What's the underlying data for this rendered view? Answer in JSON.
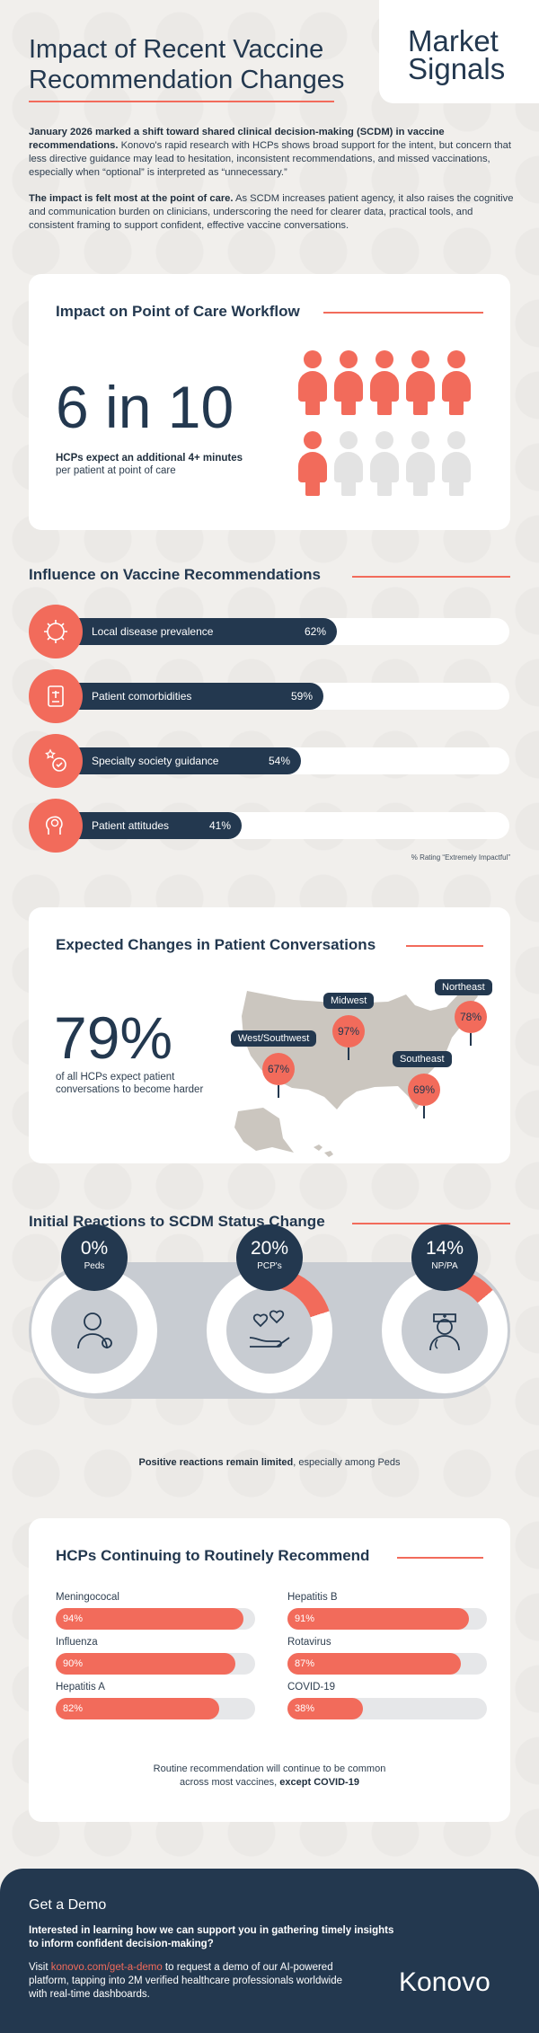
{
  "header": {
    "title": "Impact of Recent Vaccine Recommendation Changes",
    "brand": "Market Signals"
  },
  "intro": {
    "p1_bold": "January 2026 marked a shift toward shared clinical decision-making (SCDM) in vaccine recommendations.",
    "p1_rest": " Konovo's rapid research with HCPs shows broad support for the intent, but concern that less directive guidance may lead to hesitation, inconsistent recommendations, and missed vaccinations, especially when “optional” is interpreted as “unnecessary.”",
    "p2_bold": "The impact is felt most at the point of care.",
    "p2_rest": " As SCDM increases patient agency, it also raises the cognitive and communication burden on clinicians, underscoring the need for clearer data, practical tools, and consistent framing to support confident, effective vaccine conversations."
  },
  "workflow": {
    "title": "Impact on Point of Care Workflow",
    "stat": "6 in 10",
    "caption_bold": "HCPs expect an additional 4+ minutes",
    "caption_rest": "per patient at point of care",
    "highlighted_count": 6,
    "total_count": 10
  },
  "influence": {
    "title": "Influence on Vaccine Recommendations",
    "note": "% Rating “Extremely Impactful”",
    "items": [
      {
        "label": "Local disease prevalence",
        "value": "62%",
        "fraction": 0.62,
        "icon": "virus-globe-icon"
      },
      {
        "label": "Patient comorbidities",
        "value": "59%",
        "fraction": 0.59,
        "icon": "clipboard-icon"
      },
      {
        "label": "Specialty society guidance",
        "value": "54%",
        "fraction": 0.54,
        "icon": "stars-badge-icon"
      },
      {
        "label": "Patient attitudes",
        "value": "41%",
        "fraction": 0.41,
        "icon": "head-brain-icon"
      }
    ]
  },
  "conversations": {
    "title": "Expected Changes in Patient Conversations",
    "stat": "79%",
    "caption": "of all HCPs expect patient conversations to become harder",
    "regions": [
      {
        "name": "West/Southwest",
        "value": "67%"
      },
      {
        "name": "Midwest",
        "value": "97%"
      },
      {
        "name": "Northeast",
        "value": "78%"
      },
      {
        "name": "Southeast",
        "value": "69%"
      }
    ]
  },
  "reactions": {
    "title": "Initial Reactions to SCDM Status Change",
    "items": [
      {
        "value": "0%",
        "label": "Peds",
        "fraction": 0.0,
        "icon": "doctor-icon"
      },
      {
        "value": "20%",
        "label": "PCP's",
        "fraction": 0.2,
        "icon": "hearts-hand-icon"
      },
      {
        "value": "14%",
        "label": "NP/PA",
        "fraction": 0.14,
        "icon": "nurse-icon"
      }
    ],
    "caption_bold": "Positive reactions remain limited",
    "caption_rest": ", especially among Peds"
  },
  "routine": {
    "title": "HCPs Continuing to Routinely Recommend",
    "items": [
      {
        "name": "Meningococal",
        "value": "94%",
        "fraction": 0.94
      },
      {
        "name": "Hepatitis B",
        "value": "91%",
        "fraction": 0.91
      },
      {
        "name": "Influenza",
        "value": "90%",
        "fraction": 0.9
      },
      {
        "name": "Rotavirus",
        "value": "87%",
        "fraction": 0.87
      },
      {
        "name": "Hepatitis A",
        "value": "82%",
        "fraction": 0.82
      },
      {
        "name": "COVID-19",
        "value": "38%",
        "fraction": 0.38
      }
    ],
    "caption_line1": "Routine recommendation will continue to be common",
    "caption_line2_rest": "across most vaccines, ",
    "caption_line2_bold": "except COVID-19"
  },
  "footer": {
    "title": "Get a Demo",
    "lead": "Interested in learning how we can support you in gathering timely insights to inform confident decision-making?",
    "body_pre": "Visit ",
    "link": "konovo.com/get-a-demo",
    "body_post": " to request a demo of our AI-powered platform, tapping into 2M verified healthcare professionals worldwide with real-time dashboards.",
    "logo": "Konovo"
  },
  "colors": {
    "navy": "#23384f",
    "coral": "#f26b5b",
    "grey": "#c8ccd2"
  }
}
